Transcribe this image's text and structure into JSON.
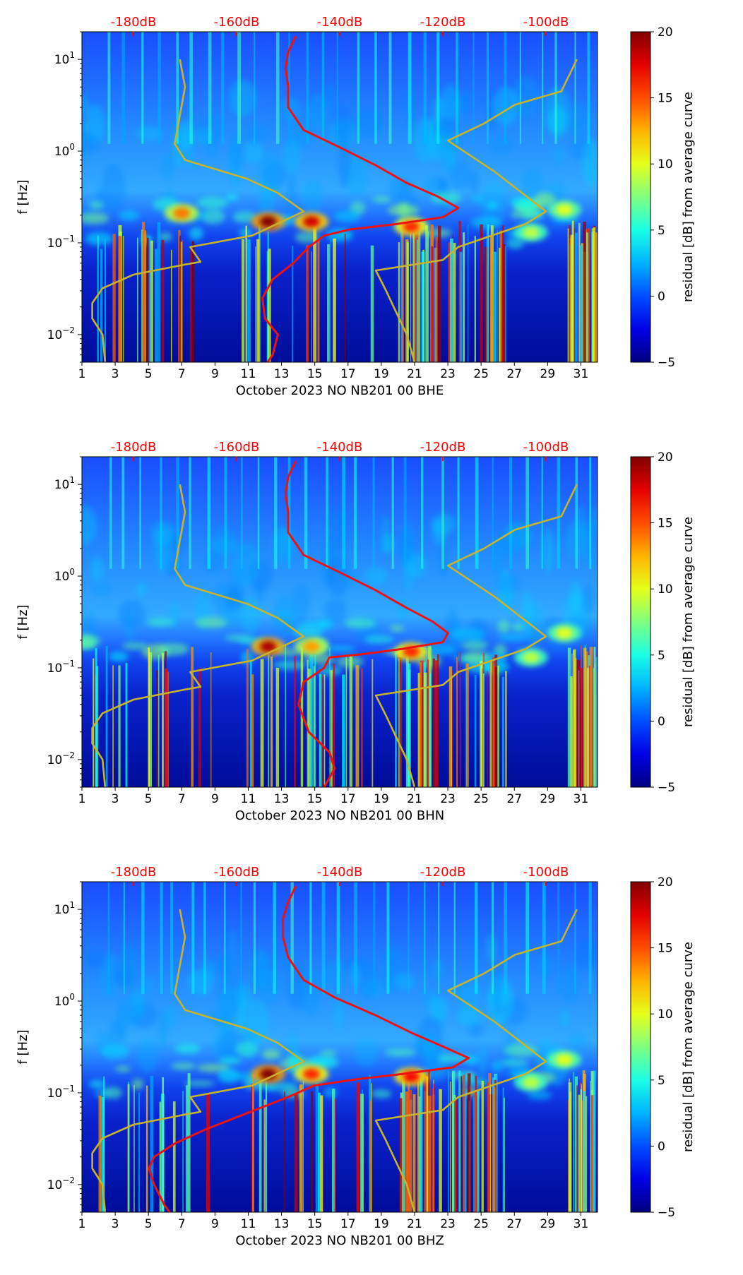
{
  "chart_data": [
    {
      "type": "heatmap",
      "title": "",
      "xlabel": "October 2023 NO NB201 00 BHE",
      "ylabel": "f [Hz]",
      "xlim": [
        1,
        32
      ],
      "ylim": [
        0.005,
        20
      ],
      "yscale": "log",
      "x_ticks": [
        1,
        3,
        5,
        7,
        9,
        11,
        13,
        15,
        17,
        19,
        21,
        23,
        25,
        27,
        29,
        31
      ],
      "y_ticks": [
        {
          "value": 0.01,
          "label": "10",
          "exp": "−2"
        },
        {
          "value": 0.1,
          "label": "10",
          "exp": "−1"
        },
        {
          "value": 1,
          "label": "10",
          "exp": "0"
        },
        {
          "value": 10,
          "label": "10",
          "exp": "1"
        }
      ],
      "top_axis": {
        "labels": [
          "-180dB",
          "-160dB",
          "-140dB",
          "-120dB",
          "-100dB"
        ],
        "values_db": [
          -180,
          -160,
          -140,
          -120,
          -100
        ],
        "range_db": [
          -190,
          -90
        ],
        "color": "#ff0000"
      },
      "colorbar": {
        "label": "residual [dB] from average curve",
        "range": [
          -5,
          20
        ],
        "ticks": [
          -5,
          0,
          5,
          10,
          15,
          20
        ],
        "tick_labels": [
          "−5",
          "0",
          "5",
          "10",
          "15",
          "20"
        ],
        "colormap": "jet"
      },
      "blobs": [
        {
          "day": 7,
          "f": 0.21,
          "value": 14
        },
        {
          "day": 12.2,
          "f": 0.17,
          "value": 20
        },
        {
          "day": 14.8,
          "f": 0.17,
          "value": 18
        },
        {
          "day": 20.8,
          "f": 0.15,
          "value": 16
        },
        {
          "day": 30,
          "f": 0.23,
          "value": 10
        },
        {
          "day": 28,
          "f": 0.13,
          "value": 9
        }
      ],
      "series": [
        {
          "name": "red PSD curve (top-axis dB)",
          "color": "#ee1111",
          "points": [
            [
              -148.5,
              18
            ],
            [
              -150,
              12
            ],
            [
              -150.5,
              8
            ],
            [
              -150,
              5
            ],
            [
              -150,
              3
            ],
            [
              -147,
              1.7
            ],
            [
              -140,
              1.1
            ],
            [
              -133,
              0.7
            ],
            [
              -127,
              0.45
            ],
            [
              -121,
              0.32
            ],
            [
              -117,
              0.24
            ],
            [
              -120,
              0.19
            ],
            [
              -129,
              0.16
            ],
            [
              -138,
              0.14
            ],
            [
              -143,
              0.12
            ],
            [
              -146,
              0.09
            ],
            [
              -149,
              0.06
            ],
            [
              -153,
              0.04
            ],
            [
              -155,
              0.025
            ],
            [
              -154.5,
              0.015
            ],
            [
              -152,
              0.01
            ],
            [
              -153,
              0.006
            ],
            [
              -154,
              0.005
            ]
          ]
        },
        {
          "name": "yellow model curve (top-axis dB)",
          "color": "#c8b42a",
          "points": [
            [
              -171,
              10
            ],
            [
              -170,
              5
            ],
            [
              -172,
              1.2
            ],
            [
              -170,
              0.8
            ],
            [
              -158,
              0.5
            ],
            [
              -152,
              0.35
            ],
            [
              -147,
              0.22
            ],
            [
              -157,
              0.12
            ],
            [
              -169,
              0.09
            ],
            [
              -167,
              0.062
            ],
            [
              -170,
              0.058
            ],
            [
              -180,
              0.045
            ],
            [
              -186,
              0.032
            ],
            [
              -188,
              0.022
            ],
            [
              -188,
              0.015
            ],
            [
              -186,
              0.01
            ],
            [
              -185.5,
              0.005
            ]
          ]
        },
        {
          "name": "yellow model curve right (top-axis dB)",
          "color": "#c8b42a",
          "points": [
            [
              -94,
              10
            ],
            [
              -97,
              4.5
            ],
            [
              -106,
              3.2
            ],
            [
              -112,
              2
            ],
            [
              -119,
              1.3
            ],
            [
              -110,
              0.6
            ],
            [
              -100,
              0.22
            ],
            [
              -104,
              0.16
            ],
            [
              -117,
              0.09
            ],
            [
              -120,
              0.065
            ],
            [
              -133,
              0.05
            ],
            [
              -131,
              0.03
            ],
            [
              -127,
              0.01
            ],
            [
              -125.5,
              0.005
            ]
          ]
        }
      ]
    },
    {
      "type": "heatmap",
      "title": "",
      "xlabel": "October 2023 NO NB201 00 BHN",
      "ylabel": "f [Hz]",
      "xlim": [
        1,
        32
      ],
      "ylim": [
        0.005,
        20
      ],
      "yscale": "log",
      "x_ticks": [
        1,
        3,
        5,
        7,
        9,
        11,
        13,
        15,
        17,
        19,
        21,
        23,
        25,
        27,
        29,
        31
      ],
      "y_ticks": [
        {
          "value": 0.01,
          "label": "10",
          "exp": "−2"
        },
        {
          "value": 0.1,
          "label": "10",
          "exp": "−1"
        },
        {
          "value": 1,
          "label": "10",
          "exp": "0"
        },
        {
          "value": 10,
          "label": "10",
          "exp": "1"
        }
      ],
      "top_axis": {
        "labels": [
          "-180dB",
          "-160dB",
          "-140dB",
          "-120dB",
          "-100dB"
        ],
        "values_db": [
          -180,
          -160,
          -140,
          -120,
          -100
        ],
        "range_db": [
          -190,
          -90
        ],
        "color": "#ff0000"
      },
      "colorbar": {
        "label": "residual [dB] from average curve",
        "range": [
          -5,
          20
        ],
        "ticks": [
          -5,
          0,
          5,
          10,
          15,
          20
        ],
        "tick_labels": [
          "−5",
          "0",
          "5",
          "10",
          "15",
          "20"
        ],
        "colormap": "jet"
      },
      "blobs": [
        {
          "day": 12.2,
          "f": 0.17,
          "value": 19
        },
        {
          "day": 14.8,
          "f": 0.17,
          "value": 13
        },
        {
          "day": 20.8,
          "f": 0.15,
          "value": 16
        },
        {
          "day": 30,
          "f": 0.24,
          "value": 10
        },
        {
          "day": 28,
          "f": 0.13,
          "value": 9
        }
      ],
      "series": [
        {
          "name": "red PSD curve (top-axis dB)",
          "color": "#ee1111",
          "points": [
            [
              -148.5,
              18
            ],
            [
              -150,
              12
            ],
            [
              -150.5,
              8
            ],
            [
              -150,
              5
            ],
            [
              -150,
              3
            ],
            [
              -147,
              1.7
            ],
            [
              -140,
              1.1
            ],
            [
              -133,
              0.7
            ],
            [
              -127,
              0.45
            ],
            [
              -122,
              0.32
            ],
            [
              -119,
              0.24
            ],
            [
              -120,
              0.19
            ],
            [
              -128,
              0.16
            ],
            [
              -136,
              0.14
            ],
            [
              -142,
              0.13
            ],
            [
              -143,
              0.1
            ],
            [
              -147,
              0.07
            ],
            [
              -148,
              0.04
            ],
            [
              -146,
              0.02
            ],
            [
              -142,
              0.012
            ],
            [
              -141,
              0.008
            ],
            [
              -143,
              0.005
            ]
          ]
        },
        {
          "name": "yellow model curve (top-axis dB)",
          "color": "#c8b42a",
          "points": [
            [
              -171,
              10
            ],
            [
              -170,
              5
            ],
            [
              -172,
              1.2
            ],
            [
              -170,
              0.8
            ],
            [
              -158,
              0.5
            ],
            [
              -152,
              0.35
            ],
            [
              -147,
              0.22
            ],
            [
              -157,
              0.12
            ],
            [
              -169,
              0.09
            ],
            [
              -167,
              0.062
            ],
            [
              -170,
              0.058
            ],
            [
              -180,
              0.045
            ],
            [
              -186,
              0.032
            ],
            [
              -188,
              0.022
            ],
            [
              -188,
              0.015
            ],
            [
              -186,
              0.01
            ],
            [
              -185.5,
              0.005
            ]
          ]
        },
        {
          "name": "yellow model curve right (top-axis dB)",
          "color": "#c8b42a",
          "points": [
            [
              -94,
              10
            ],
            [
              -97,
              4.5
            ],
            [
              -106,
              3.2
            ],
            [
              -112,
              2
            ],
            [
              -119,
              1.3
            ],
            [
              -110,
              0.6
            ],
            [
              -100,
              0.22
            ],
            [
              -104,
              0.16
            ],
            [
              -117,
              0.09
            ],
            [
              -120,
              0.065
            ],
            [
              -133,
              0.05
            ],
            [
              -131,
              0.03
            ],
            [
              -127,
              0.01
            ],
            [
              -125.5,
              0.005
            ]
          ]
        }
      ]
    },
    {
      "type": "heatmap",
      "title": "",
      "xlabel": "October 2023 NO NB201 00 BHZ",
      "ylabel": "f [Hz]",
      "xlim": [
        1,
        32
      ],
      "ylim": [
        0.005,
        20
      ],
      "yscale": "log",
      "x_ticks": [
        1,
        3,
        5,
        7,
        9,
        11,
        13,
        15,
        17,
        19,
        21,
        23,
        25,
        27,
        29,
        31
      ],
      "y_ticks": [
        {
          "value": 0.01,
          "label": "10",
          "exp": "−2"
        },
        {
          "value": 0.1,
          "label": "10",
          "exp": "−1"
        },
        {
          "value": 1,
          "label": "10",
          "exp": "0"
        },
        {
          "value": 10,
          "label": "10",
          "exp": "1"
        }
      ],
      "top_axis": {
        "labels": [
          "-180dB",
          "-160dB",
          "-140dB",
          "-120dB",
          "-100dB"
        ],
        "values_db": [
          -180,
          -160,
          -140,
          -120,
          -100
        ],
        "range_db": [
          -190,
          -90
        ],
        "color": "#ff0000"
      },
      "colorbar": {
        "label": "residual [dB] from average curve",
        "range": [
          -5,
          20
        ],
        "ticks": [
          -5,
          0,
          5,
          10,
          15,
          20
        ],
        "tick_labels": [
          "−5",
          "0",
          "5",
          "10",
          "15",
          "20"
        ],
        "colormap": "jet"
      },
      "blobs": [
        {
          "day": 12.2,
          "f": 0.16,
          "value": 20
        },
        {
          "day": 14.8,
          "f": 0.16,
          "value": 16
        },
        {
          "day": 20.8,
          "f": 0.15,
          "value": 17
        },
        {
          "day": 30,
          "f": 0.23,
          "value": 10
        },
        {
          "day": 28,
          "f": 0.13,
          "value": 9
        }
      ],
      "series": [
        {
          "name": "red PSD curve (top-axis dB)",
          "color": "#ee1111",
          "points": [
            [
              -148.5,
              18
            ],
            [
              -150,
              12
            ],
            [
              -151,
              8
            ],
            [
              -151,
              5
            ],
            [
              -150,
              3
            ],
            [
              -147,
              1.7
            ],
            [
              -141,
              1.1
            ],
            [
              -133,
              0.7
            ],
            [
              -126,
              0.45
            ],
            [
              -120,
              0.32
            ],
            [
              -115,
              0.24
            ],
            [
              -118,
              0.19
            ],
            [
              -128,
              0.16
            ],
            [
              -137,
              0.14
            ],
            [
              -145,
              0.12
            ],
            [
              -150,
              0.09
            ],
            [
              -158,
              0.06
            ],
            [
              -166,
              0.04
            ],
            [
              -172,
              0.028
            ],
            [
              -176,
              0.02
            ],
            [
              -177,
              0.015
            ],
            [
              -176,
              0.01
            ],
            [
              -174,
              0.006
            ],
            [
              -173,
              0.005
            ]
          ]
        },
        {
          "name": "yellow model curve (top-axis dB)",
          "color": "#c8b42a",
          "points": [
            [
              -171,
              10
            ],
            [
              -170,
              5
            ],
            [
              -172,
              1.2
            ],
            [
              -170,
              0.8
            ],
            [
              -158,
              0.5
            ],
            [
              -152,
              0.35
            ],
            [
              -147,
              0.22
            ],
            [
              -157,
              0.12
            ],
            [
              -169,
              0.09
            ],
            [
              -167,
              0.062
            ],
            [
              -170,
              0.058
            ],
            [
              -180,
              0.045
            ],
            [
              -186,
              0.032
            ],
            [
              -188,
              0.022
            ],
            [
              -188,
              0.015
            ],
            [
              -186,
              0.01
            ],
            [
              -185.5,
              0.005
            ]
          ]
        },
        {
          "name": "yellow model curve right (top-axis dB)",
          "color": "#c8b42a",
          "points": [
            [
              -94,
              10
            ],
            [
              -97,
              4.5
            ],
            [
              -106,
              3.2
            ],
            [
              -112,
              2
            ],
            [
              -119,
              1.3
            ],
            [
              -110,
              0.6
            ],
            [
              -100,
              0.22
            ],
            [
              -104,
              0.16
            ],
            [
              -117,
              0.09
            ],
            [
              -120,
              0.065
            ],
            [
              -133,
              0.05
            ],
            [
              -131,
              0.03
            ],
            [
              -127,
              0.01
            ],
            [
              -125.5,
              0.005
            ]
          ]
        }
      ]
    }
  ]
}
